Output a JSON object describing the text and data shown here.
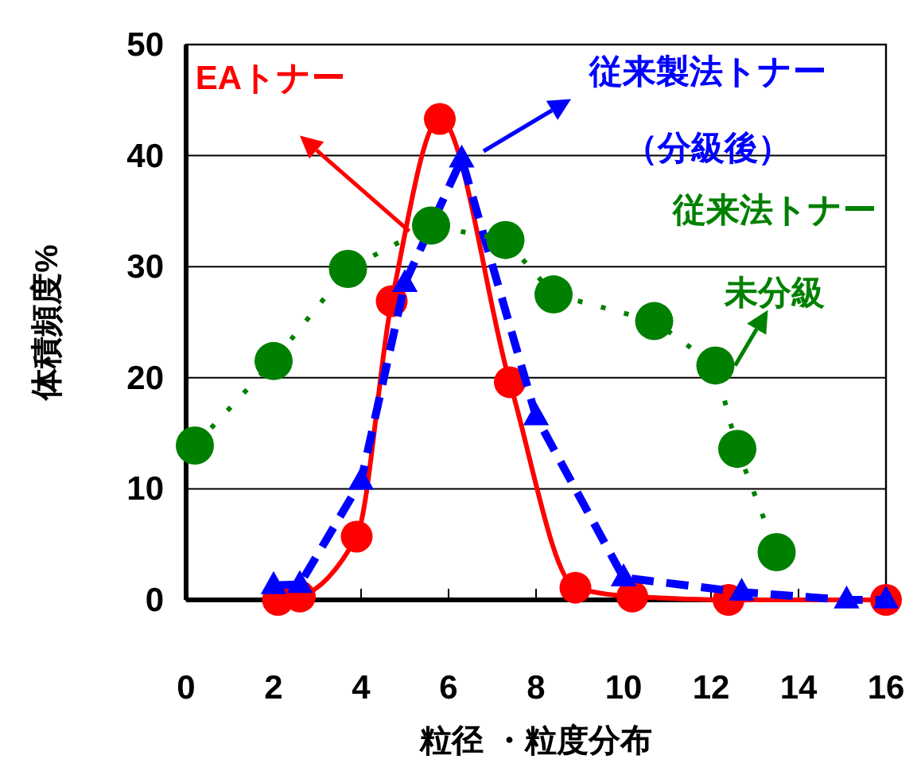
{
  "chart_data": {
    "type": "line",
    "xlabel": "粒径 ・粒度分布",
    "ylabel": "体積頻度%",
    "xlim": [
      0,
      16
    ],
    "xticks": [
      0,
      2,
      4,
      6,
      8,
      10,
      12,
      14,
      16
    ],
    "ylim": [
      0,
      50
    ],
    "yticks": [
      0,
      10,
      20,
      30,
      40,
      50
    ],
    "grid": "y",
    "series": [
      {
        "name": "EAトナー",
        "color": "#ff0000",
        "marker": "circle",
        "line_style": "solid",
        "x": [
          2.1,
          2.6,
          3.9,
          4.7,
          5.8,
          7.4,
          8.9,
          10.2,
          12.4,
          16
        ],
        "values": [
          0,
          0.3,
          5.7,
          26.9,
          43.3,
          19.6,
          1.1,
          0.3,
          0,
          0
        ]
      },
      {
        "name": "従来製法トナー（分級後）",
        "color": "#0000ff",
        "marker": "triangle",
        "line_style": "dashed",
        "x": [
          2.0,
          2.6,
          4.0,
          5.0,
          6.3,
          8.0,
          10.0,
          12.7,
          15.1,
          16
        ],
        "values": [
          1.3,
          1.4,
          10.7,
          28.5,
          39.7,
          16.5,
          2.0,
          0.7,
          0,
          0
        ]
      },
      {
        "name": "従来法トナー未分級",
        "color": "#008000",
        "marker": "circle",
        "line_style": "dotted",
        "x": [
          0.2,
          2.0,
          3.7,
          5.6,
          7.3,
          8.4,
          10.7,
          12.1,
          12.6,
          13.5
        ],
        "values": [
          13.9,
          21.5,
          29.8,
          33.7,
          32.4,
          27.5,
          25.1,
          21.1,
          13.6,
          4.3
        ]
      }
    ]
  }
}
